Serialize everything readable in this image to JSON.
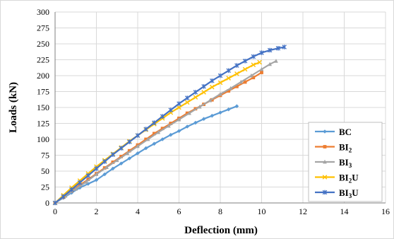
{
  "chart_data": {
    "type": "line",
    "title": "",
    "xlabel": "Deflection (mm)",
    "ylabel": "Loads (kN)",
    "xlim": [
      0,
      16
    ],
    "ylim": [
      0,
      300
    ],
    "xticks": [
      "0",
      "2",
      "4",
      "6",
      "8",
      "10",
      "12",
      "14",
      "16"
    ],
    "yticks": [
      "0",
      "25",
      "50",
      "75",
      "100",
      "125",
      "150",
      "175",
      "200",
      "225",
      "250",
      "275",
      "300"
    ],
    "grid": true,
    "legend_position": "bottom-right",
    "series": [
      {
        "name": "BC",
        "name_base": "BC",
        "name_sub": "",
        "name_suffix": "",
        "color": "#5B9BD5",
        "marker": "diamond",
        "points": [
          [
            0,
            0
          ],
          [
            0.4,
            8
          ],
          [
            0.8,
            16
          ],
          [
            1.2,
            24
          ],
          [
            1.6,
            30
          ],
          [
            2.0,
            36
          ],
          [
            2.4,
            45
          ],
          [
            2.8,
            54
          ],
          [
            3.2,
            62
          ],
          [
            3.6,
            70
          ],
          [
            4.0,
            78
          ],
          [
            4.4,
            86
          ],
          [
            4.8,
            93
          ],
          [
            5.2,
            100
          ],
          [
            5.6,
            107
          ],
          [
            6.0,
            113
          ],
          [
            6.4,
            120
          ],
          [
            6.8,
            126
          ],
          [
            7.2,
            132
          ],
          [
            7.6,
            137
          ],
          [
            8.0,
            142
          ],
          [
            8.4,
            147
          ],
          [
            8.8,
            152
          ]
        ]
      },
      {
        "name": "BI2",
        "name_base": "BI",
        "name_sub": "2",
        "name_suffix": "",
        "color": "#ED7D31",
        "marker": "square",
        "points": [
          [
            0,
            0
          ],
          [
            0.4,
            9
          ],
          [
            0.8,
            19
          ],
          [
            1.2,
            28
          ],
          [
            1.6,
            37
          ],
          [
            2.0,
            46
          ],
          [
            2.4,
            55
          ],
          [
            2.8,
            64
          ],
          [
            3.2,
            73
          ],
          [
            3.6,
            82
          ],
          [
            4.0,
            91
          ],
          [
            4.4,
            100
          ],
          [
            4.8,
            109
          ],
          [
            5.2,
            117
          ],
          [
            5.6,
            125
          ],
          [
            6.0,
            133
          ],
          [
            6.4,
            141
          ],
          [
            6.8,
            148
          ],
          [
            7.2,
            155
          ],
          [
            7.6,
            162
          ],
          [
            8.0,
            169
          ],
          [
            8.4,
            176
          ],
          [
            8.8,
            183
          ],
          [
            9.2,
            190
          ],
          [
            9.6,
            197
          ],
          [
            10.0,
            205
          ]
        ]
      },
      {
        "name": "BI3",
        "name_base": "BI",
        "name_sub": "3",
        "name_suffix": "",
        "color": "#A5A5A5",
        "marker": "triangle",
        "points": [
          [
            0,
            0
          ],
          [
            0.5,
            11
          ],
          [
            1.0,
            22
          ],
          [
            1.5,
            33
          ],
          [
            2.0,
            45
          ],
          [
            2.5,
            56
          ],
          [
            3.0,
            67
          ],
          [
            3.5,
            78
          ],
          [
            4.0,
            89
          ],
          [
            4.5,
            100
          ],
          [
            5.0,
            111
          ],
          [
            5.5,
            121
          ],
          [
            6.0,
            131
          ],
          [
            6.5,
            141
          ],
          [
            7.0,
            151
          ],
          [
            7.5,
            161
          ],
          [
            8.0,
            171
          ],
          [
            8.5,
            180
          ],
          [
            9.0,
            190
          ],
          [
            9.5,
            200
          ],
          [
            10.0,
            210
          ],
          [
            10.4,
            218
          ],
          [
            10.7,
            223
          ]
        ]
      },
      {
        "name": "BI2U",
        "name_base": "BI",
        "name_sub": "2",
        "name_suffix": "U",
        "color": "#FFC000",
        "marker": "x",
        "points": [
          [
            0,
            0
          ],
          [
            0.4,
            12
          ],
          [
            0.8,
            24
          ],
          [
            1.2,
            35
          ],
          [
            1.6,
            46
          ],
          [
            2.0,
            57
          ],
          [
            2.4,
            67
          ],
          [
            2.8,
            77
          ],
          [
            3.2,
            87
          ],
          [
            3.6,
            97
          ],
          [
            4.0,
            106
          ],
          [
            4.4,
            115
          ],
          [
            4.8,
            124
          ],
          [
            5.2,
            133
          ],
          [
            5.6,
            142
          ],
          [
            6.0,
            150
          ],
          [
            6.4,
            158
          ],
          [
            6.8,
            166
          ],
          [
            7.2,
            174
          ],
          [
            7.6,
            182
          ],
          [
            8.0,
            189
          ],
          [
            8.4,
            196
          ],
          [
            8.8,
            203
          ],
          [
            9.2,
            210
          ],
          [
            9.6,
            217
          ],
          [
            9.9,
            221
          ]
        ]
      },
      {
        "name": "BI3U",
        "name_base": "BI",
        "name_sub": "3",
        "name_suffix": "U",
        "color": "#4472C4",
        "marker": "star",
        "points": [
          [
            0,
            0
          ],
          [
            0.4,
            10
          ],
          [
            0.8,
            21
          ],
          [
            1.2,
            32
          ],
          [
            1.6,
            43
          ],
          [
            2.0,
            54
          ],
          [
            2.4,
            65
          ],
          [
            2.8,
            76
          ],
          [
            3.2,
            86
          ],
          [
            3.6,
            96
          ],
          [
            4.0,
            106
          ],
          [
            4.4,
            116
          ],
          [
            4.8,
            126
          ],
          [
            5.2,
            136
          ],
          [
            5.6,
            146
          ],
          [
            6.0,
            156
          ],
          [
            6.4,
            165
          ],
          [
            6.8,
            174
          ],
          [
            7.2,
            183
          ],
          [
            7.6,
            192
          ],
          [
            8.0,
            200
          ],
          [
            8.4,
            208
          ],
          [
            8.8,
            216
          ],
          [
            9.2,
            223
          ],
          [
            9.6,
            230
          ],
          [
            10.0,
            236
          ],
          [
            10.4,
            240
          ],
          [
            10.8,
            243
          ],
          [
            11.1,
            245
          ]
        ]
      }
    ]
  }
}
